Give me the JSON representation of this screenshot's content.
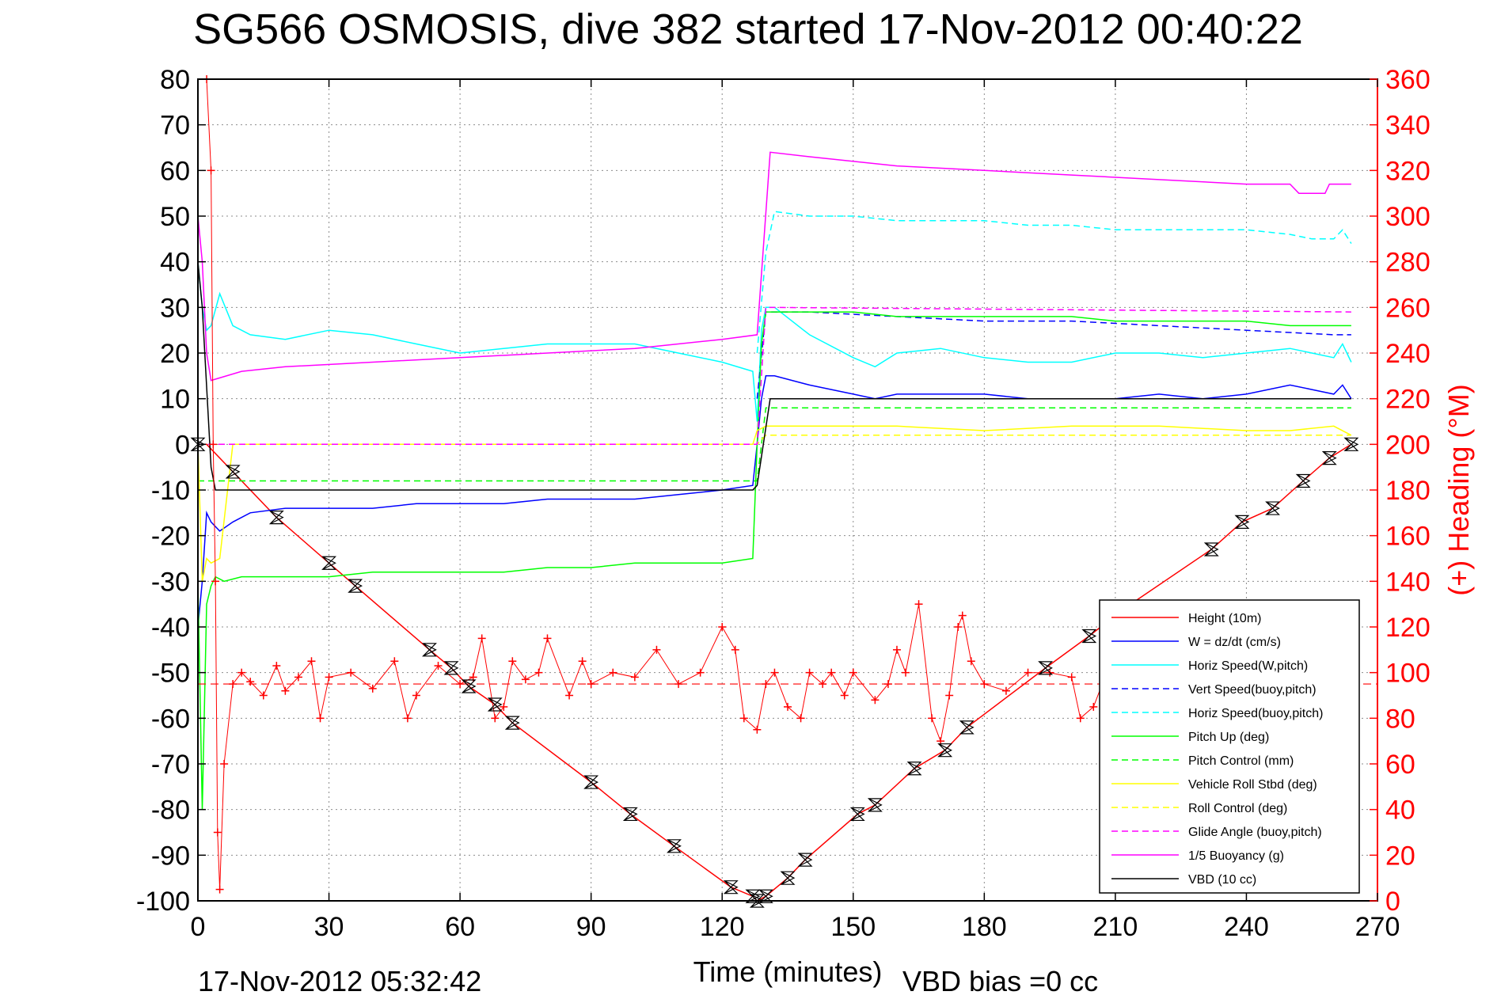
{
  "chart_data": {
    "type": "line",
    "title": "SG566 OSMOSIS, dive 382 started 17-Nov-2012 00:40:22",
    "xlabel": "Time (minutes)",
    "ylabel": "",
    "y2label": "(+) Heading (°M)",
    "footer_left": "17-Nov-2012 05:32:42",
    "footer_right": "VBD bias =0 cc",
    "xlim": [
      0,
      270
    ],
    "ylim": [
      -100,
      80
    ],
    "y2lim": [
      0,
      360
    ],
    "xticks": [
      0,
      30,
      60,
      90,
      120,
      150,
      180,
      210,
      240,
      270
    ],
    "yticks": [
      -100,
      -90,
      -80,
      -70,
      -60,
      -50,
      -40,
      -30,
      -20,
      -10,
      0,
      10,
      20,
      30,
      40,
      50,
      60,
      70,
      80
    ],
    "y2ticks": [
      0,
      20,
      40,
      60,
      80,
      100,
      120,
      140,
      160,
      180,
      200,
      220,
      240,
      260,
      280,
      300,
      320,
      340,
      360
    ],
    "xtick_labels": [
      "0",
      "30",
      "60",
      "90",
      "120",
      "150",
      "180",
      "210",
      "240",
      "270"
    ],
    "ytick_labels": [
      "-100",
      "-90",
      "-80",
      "-70",
      "-60",
      "-50",
      "-40",
      "-30",
      "-20",
      "-10",
      "0",
      "10",
      "20",
      "30",
      "40",
      "50",
      "60",
      "70",
      "80"
    ],
    "y2tick_labels": [
      "0",
      "20",
      "40",
      "60",
      "80",
      "100",
      "120",
      "140",
      "160",
      "180",
      "200",
      "220",
      "240",
      "260",
      "280",
      "300",
      "320",
      "340",
      "360"
    ],
    "grid": true,
    "legend_position": "bottom-right",
    "colors": {
      "height": "#ff0000",
      "w": "#0000ff",
      "horiz_speed_w": "#00ffff",
      "pitch": "#00ff00",
      "roll": "#ffff00",
      "glide": "#ff00ff",
      "buoyancy": "#ff00ff",
      "vbd": "#000000",
      "heading": "#ff0000"
    },
    "legend": [
      {
        "label": "Height (10m)",
        "color": "#ff0000",
        "dash": false
      },
      {
        "label": "W = dz/dt (cm/s)",
        "color": "#0000ff",
        "dash": false
      },
      {
        "label": "Horiz Speed(W,pitch)",
        "color": "#00ffff",
        "dash": false
      },
      {
        "label": "Vert Speed(buoy,pitch)",
        "color": "#0000ff",
        "dash": true
      },
      {
        "label": "Horiz Speed(buoy,pitch)",
        "color": "#00ffff",
        "dash": true
      },
      {
        "label": "Pitch Up (deg)",
        "color": "#00ff00",
        "dash": false
      },
      {
        "label": "Pitch Control (mm)",
        "color": "#00ff00",
        "dash": true
      },
      {
        "label": "Vehicle Roll Stbd (deg)",
        "color": "#ffff00",
        "dash": false
      },
      {
        "label": "Roll Control (deg)",
        "color": "#ffff00",
        "dash": true
      },
      {
        "label": "Glide Angle (buoy,pitch)",
        "color": "#ff00ff",
        "dash": true
      },
      {
        "label": "1/5 Buoyancy (g)",
        "color": "#ff00ff",
        "dash": false
      },
      {
        "label": "VBD (10 cc)",
        "color": "#000000",
        "dash": false
      }
    ],
    "series": [
      {
        "name": "Height (10m)",
        "color": "#ff0000",
        "dash": false,
        "axis": "left",
        "x": [
          0,
          2,
          8,
          18,
          30,
          36,
          53,
          58,
          62,
          68,
          72,
          90,
          99,
          109,
          122,
          127,
          128,
          130,
          135,
          139,
          151,
          155,
          164,
          171,
          176,
          194,
          204,
          212,
          232,
          239,
          246,
          253,
          259,
          264
        ],
        "y": [
          0,
          0,
          -6,
          -16,
          -26,
          -31,
          -45,
          -49,
          -53,
          -57,
          -61,
          -74,
          -81,
          -88,
          -97,
          -99,
          -100,
          -99,
          -95,
          -91,
          -81,
          -79,
          -71,
          -67,
          -62,
          -49,
          -42,
          -36,
          -23,
          -17,
          -14,
          -8,
          -3,
          0
        ]
      },
      {
        "name": "W = dz/dt (cm/s)",
        "color": "#0000ff",
        "dash": false,
        "axis": "left",
        "x": [
          0,
          1,
          2,
          3,
          5,
          8,
          12,
          20,
          30,
          40,
          50,
          60,
          70,
          80,
          90,
          100,
          110,
          120,
          127,
          128,
          129,
          130,
          132,
          140,
          150,
          155,
          160,
          170,
          180,
          190,
          200,
          210,
          220,
          230,
          240,
          250,
          255,
          260,
          262,
          264
        ],
        "y": [
          -40,
          -30,
          -15,
          -17,
          -19,
          -17,
          -15,
          -14,
          -14,
          -14,
          -13,
          -13,
          -13,
          -12,
          -12,
          -12,
          -11,
          -10,
          -9,
          0,
          10,
          15,
          15,
          13,
          11,
          10,
          11,
          11,
          11,
          10,
          10,
          10,
          11,
          10,
          11,
          13,
          12,
          11,
          13,
          10
        ]
      },
      {
        "name": "Horiz Speed(W,pitch)",
        "color": "#00ffff",
        "dash": false,
        "axis": "left",
        "x": [
          0,
          1,
          2,
          3,
          5,
          8,
          12,
          20,
          30,
          40,
          50,
          60,
          70,
          80,
          90,
          100,
          110,
          120,
          127,
          128,
          129,
          130,
          132,
          140,
          150,
          155,
          160,
          170,
          180,
          190,
          200,
          210,
          220,
          230,
          240,
          250,
          255,
          260,
          262,
          264
        ],
        "y": [
          40,
          30,
          25,
          26,
          33,
          26,
          24,
          23,
          25,
          24,
          22,
          20,
          21,
          22,
          22,
          22,
          20,
          18,
          16,
          5,
          25,
          30,
          30,
          24,
          19,
          17,
          20,
          21,
          19,
          18,
          18,
          20,
          20,
          19,
          20,
          21,
          20,
          19,
          22,
          18
        ]
      },
      {
        "name": "Vert Speed(buoy,pitch)",
        "color": "#0000ff",
        "dash": true,
        "axis": "left",
        "x": [
          128,
          130,
          140,
          160,
          180,
          200,
          220,
          240,
          260,
          264
        ],
        "y": [
          10,
          29,
          29,
          28,
          27,
          27,
          26,
          25,
          24,
          24
        ]
      },
      {
        "name": "Horiz Speed(buoy,pitch)",
        "color": "#00ffff",
        "dash": true,
        "axis": "left",
        "x": [
          128,
          130,
          132,
          140,
          150,
          160,
          170,
          180,
          190,
          200,
          210,
          220,
          230,
          240,
          250,
          255,
          260,
          262,
          264
        ],
        "y": [
          20,
          42,
          51,
          50,
          50,
          49,
          49,
          49,
          48,
          48,
          47,
          47,
          47,
          47,
          46,
          45,
          45,
          47,
          44
        ]
      },
      {
        "name": "Pitch Up (deg)",
        "color": "#00ff00",
        "dash": false,
        "axis": "left",
        "x": [
          0,
          1,
          2,
          3,
          4,
          6,
          10,
          20,
          30,
          40,
          50,
          60,
          70,
          80,
          90,
          100,
          110,
          120,
          127,
          128,
          129,
          130,
          132,
          140,
          150,
          160,
          170,
          180,
          190,
          200,
          210,
          220,
          230,
          240,
          250,
          260,
          264
        ],
        "y": [
          -30,
          -80,
          -35,
          -31,
          -29,
          -30,
          -29,
          -29,
          -29,
          -28,
          -28,
          -28,
          -28,
          -27,
          -27,
          -26,
          -26,
          -26,
          -25,
          0,
          22,
          29,
          29,
          29,
          29,
          28,
          28,
          28,
          28,
          28,
          27,
          27,
          27,
          27,
          26,
          26,
          26
        ]
      },
      {
        "name": "Pitch Control (mm)",
        "color": "#00ff00",
        "dash": true,
        "axis": "left",
        "x": [
          0,
          3,
          128,
          130,
          264
        ],
        "y": [
          -8,
          -8,
          -8,
          8,
          8
        ]
      },
      {
        "name": "Vehicle Roll Stbd (deg)",
        "color": "#ffff00",
        "dash": false,
        "axis": "left",
        "x": [
          0,
          1,
          2,
          3,
          5,
          8,
          20,
          40,
          60,
          80,
          100,
          120,
          127,
          128,
          130,
          140,
          160,
          180,
          200,
          220,
          240,
          250,
          260,
          264
        ],
        "y": [
          0,
          -30,
          -25,
          -26,
          -25,
          0,
          0,
          0,
          0,
          0,
          0,
          0,
          0,
          3,
          4,
          4,
          4,
          3,
          4,
          4,
          3,
          3,
          4,
          2
        ]
      },
      {
        "name": "Roll Control (deg)",
        "color": "#ffff00",
        "dash": true,
        "axis": "left",
        "x": [
          0,
          128,
          130,
          264
        ],
        "y": [
          0,
          0,
          2,
          2
        ]
      },
      {
        "name": "Glide Angle (buoy,pitch)",
        "color": "#ff00ff",
        "dash": true,
        "axis": "left",
        "x": [
          0,
          128,
          130,
          264
        ],
        "y": [
          0,
          0,
          30,
          29
        ]
      },
      {
        "name": "1/5 Buoyancy (g)",
        "color": "#ff00ff",
        "dash": false,
        "axis": "left",
        "x": [
          0,
          1,
          2,
          3,
          10,
          20,
          40,
          60,
          80,
          100,
          120,
          128,
          131,
          140,
          160,
          180,
          200,
          220,
          240,
          250,
          252,
          255,
          258,
          259,
          264
        ],
        "y": [
          50,
          40,
          20,
          14,
          16,
          17,
          18,
          19,
          20,
          21,
          23,
          24,
          64,
          63,
          61,
          60,
          59,
          58,
          57,
          57,
          55,
          55,
          55,
          57,
          57
        ]
      },
      {
        "name": "VBD (10 cc)",
        "color": "#000000",
        "dash": false,
        "axis": "left",
        "x": [
          0,
          1,
          3,
          4,
          127,
          128,
          131,
          264
        ],
        "y": [
          40,
          30,
          -5,
          -10,
          -10,
          -9,
          10,
          10
        ]
      },
      {
        "name": "Heading",
        "color": "#ff0000",
        "dash": false,
        "axis": "right",
        "x": [
          2,
          3,
          3.5,
          4,
          4.5,
          5,
          6,
          8,
          10,
          12,
          15,
          18,
          20,
          23,
          26,
          28,
          30,
          35,
          40,
          45,
          48,
          50,
          55,
          60,
          63,
          65,
          68,
          70,
          72,
          75,
          78,
          80,
          85,
          88,
          90,
          95,
          100,
          105,
          110,
          115,
          120,
          123,
          125,
          128,
          130,
          132,
          135,
          138,
          140,
          143,
          145,
          148,
          150,
          155,
          158,
          160,
          162,
          165,
          168,
          170,
          172,
          174,
          175,
          177,
          180,
          185,
          190,
          195,
          200,
          202,
          205,
          208,
          210,
          215,
          220,
          225,
          230
        ],
        "y": [
          360,
          320,
          200,
          140,
          30,
          5,
          60,
          95,
          100,
          96,
          90,
          103,
          92,
          98,
          105,
          80,
          98,
          100,
          93,
          105,
          80,
          90,
          103,
          95,
          98,
          115,
          80,
          85,
          105,
          97,
          100,
          115,
          90,
          105,
          95,
          100,
          98,
          110,
          95,
          100,
          120,
          110,
          80,
          75,
          95,
          100,
          85,
          80,
          100,
          95,
          100,
          90,
          100,
          88,
          95,
          110,
          100,
          130,
          80,
          70,
          90,
          120,
          125,
          105,
          95,
          92,
          100,
          100,
          98,
          80,
          85,
          100,
          95,
          100,
          90,
          105,
          100
        ]
      }
    ],
    "heading_reference": {
      "value": 95,
      "color": "#ff0000",
      "dash": true
    },
    "markers": {
      "shape": "hourglass",
      "color": "#000000",
      "x": [
        0,
        8,
        18,
        30,
        36,
        53,
        58,
        62,
        68,
        72,
        90,
        99,
        109,
        122,
        127,
        128,
        130,
        135,
        139,
        151,
        155,
        164,
        171,
        176,
        194,
        204,
        232,
        239,
        246,
        253,
        259,
        264
      ],
      "y": [
        0,
        -6,
        -16,
        -26,
        -31,
        -45,
        -49,
        -53,
        -57,
        -61,
        -74,
        -81,
        -88,
        -97,
        -99,
        -100,
        -99,
        -95,
        -91,
        -81,
        -79,
        -71,
        -67,
        -62,
        -49,
        -42,
        -23,
        -17,
        -14,
        -8,
        -3,
        0
      ]
    }
  }
}
